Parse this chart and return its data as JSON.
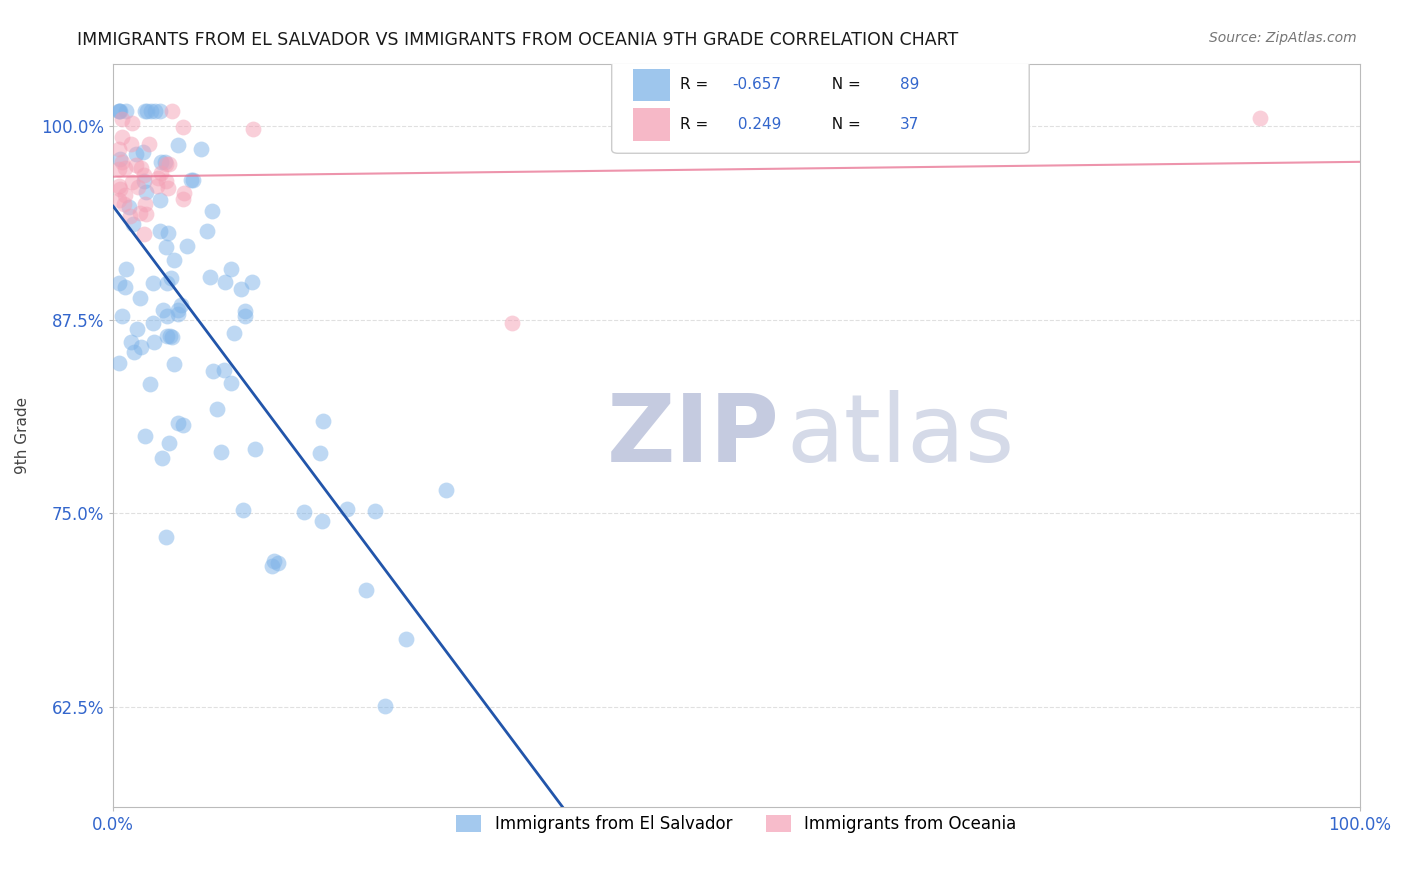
{
  "title": "IMMIGRANTS FROM EL SALVADOR VS IMMIGRANTS FROM OCEANIA 9TH GRADE CORRELATION CHART",
  "source_text": "Source: ZipAtlas.com",
  "ylabel_text": "9th Grade",
  "y_ticks": [
    0.625,
    0.75,
    0.875,
    1.0
  ],
  "y_tick_labels": [
    "62.5%",
    "75.0%",
    "87.5%",
    "100.0%"
  ],
  "x_lim": [
    0.0,
    1.0
  ],
  "y_lim": [
    0.56,
    1.04
  ],
  "blue_R": -0.657,
  "blue_N": 89,
  "pink_R": 0.249,
  "pink_N": 37,
  "blue_color": "#7EB3E8",
  "pink_color": "#F4A0B5",
  "blue_line_color": "#2255AA",
  "pink_line_color": "#E87090",
  "watermark_zip_color": "#C8CEDC",
  "watermark_atlas_color": "#C8CEDC",
  "legend_label_blue": "Immigrants from El Salvador",
  "legend_label_pink": "Immigrants from Oceania",
  "title_color": "#1a1a1a",
  "axis_label_color": "#444444",
  "tick_color": "#3366CC",
  "grid_color": "#CCCCCC",
  "legend_text_color": "#111111",
  "legend_val_color": "#3366CC"
}
